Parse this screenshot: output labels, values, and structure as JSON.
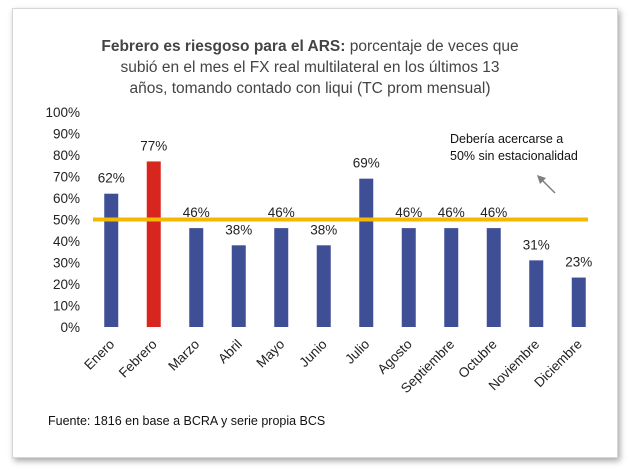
{
  "title": {
    "bold": "Febrero es riesgoso para el ARS:",
    "rest_line1": " porcentaje de veces que",
    "line2": "subió en el mes el FX real multilateral en los últimos 13",
    "line3": "años, tomando contado con liqui (TC prom mensual)"
  },
  "annotation": {
    "line1": "Debería acercarse a",
    "line2": "50% sin estacionalidad"
  },
  "source": "Fuente: 1816 en base a BCRA y serie propia BCS",
  "colors": {
    "bar": "#3f4f96",
    "highlight": "#d7261e",
    "reference_line": "#f5b800",
    "arrow": "#7f7f7f"
  },
  "chart_data": {
    "type": "bar",
    "categories": [
      "Enero",
      "Febrero",
      "Marzo",
      "Abril",
      "Mayo",
      "Junio",
      "Julio",
      "Agosto",
      "Septiembre",
      "Octubre",
      "Noviembre",
      "Diciembre"
    ],
    "values": [
      62,
      77,
      46,
      38,
      46,
      38,
      69,
      46,
      46,
      46,
      31,
      23
    ],
    "data_labels": [
      "62%",
      "77%",
      "46%",
      "38%",
      "46%",
      "38%",
      "69%",
      "46%",
      "46%",
      "46%",
      "31%",
      "23%"
    ],
    "highlight_category": "Febrero",
    "show_labels_for": [
      "Enero",
      "Febrero",
      "Marzo",
      "Abril",
      "Mayo",
      "Junio",
      "Julio",
      "Agosto",
      "Septiembre",
      "Octubre",
      "Noviembre",
      "Diciembre"
    ],
    "y_ticks": [
      "0%",
      "10%",
      "20%",
      "30%",
      "40%",
      "50%",
      "60%",
      "70%",
      "80%",
      "90%",
      "100%"
    ],
    "ylim": [
      0,
      100
    ],
    "reference_line": 50,
    "grid": false
  }
}
